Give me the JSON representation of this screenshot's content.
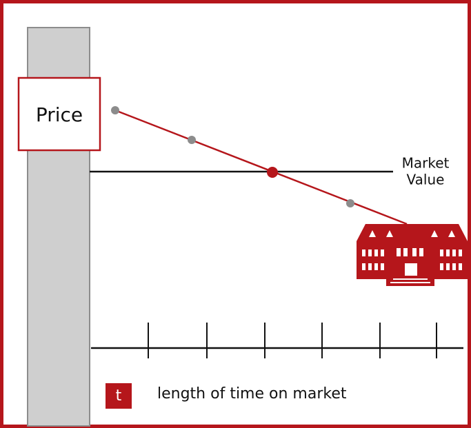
{
  "price_label": "Price",
  "market_value_label": [
    "Market",
    "Value"
  ],
  "legend": {
    "icon": "t",
    "text": "length of time on market"
  }
}
